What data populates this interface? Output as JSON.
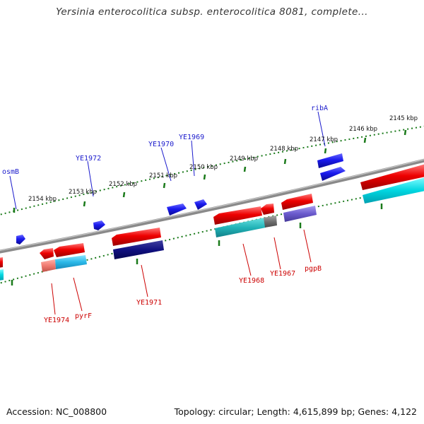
{
  "title": "Yersinia enterocolitica subsp. enterocolitica 8081, complete...",
  "footer": {
    "accession": "Accession: NC_008800",
    "topology": "Topology: circular; Length: 4,615,899 bp; Genes: 4,122"
  },
  "scale_labels": [
    "2154 kbp",
    "2153 kbp",
    "2152 kbp",
    "2151 kbp",
    "2150 kbp",
    "2149 kbp",
    "2148 kbp",
    "2147 kbp",
    "2146 kbp",
    "2145 kbp"
  ],
  "genes_top": [
    "osmB",
    "YE1972",
    "YE1970",
    "YE1969",
    "ribA"
  ],
  "genes_bottom": [
    "YE1974",
    "pyrF",
    "YE1971",
    "YE1968",
    "YE1967",
    "pgpB"
  ],
  "colors": {
    "forward_label": "#1a1acc",
    "reverse_label": "#cc0000",
    "gene_red": "#ee0000",
    "gene_blue": "#1a1aee",
    "backbone": "#808080",
    "ticks": "#1a7a1a"
  }
}
